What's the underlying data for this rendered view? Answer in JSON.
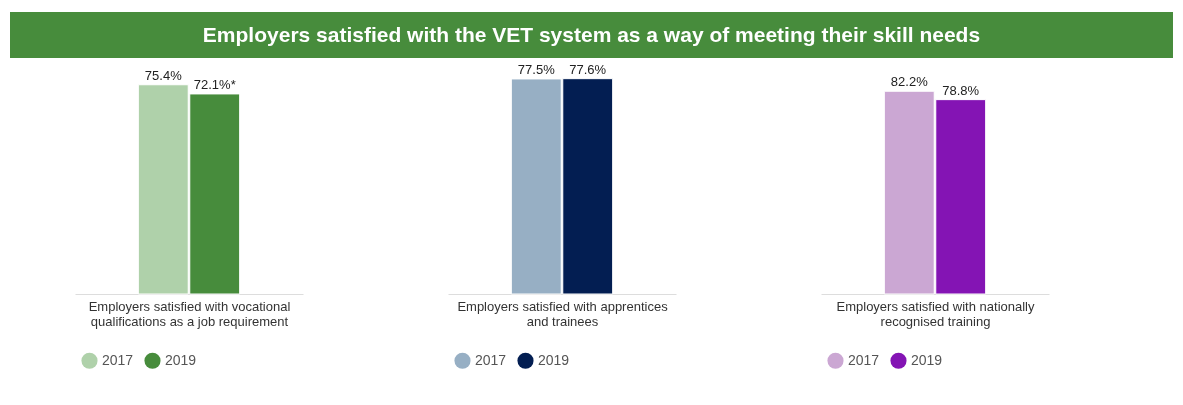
{
  "chart_data": [
    {
      "type": "bar",
      "title": "Employers satisfied with the VET system as a way of meeting their skill needs",
      "categories": [
        null
      ],
      "xlabel": "Employers satisfied with vocational qualifications as a job requirement",
      "legend": "bottom",
      "series": [
        {
          "name": "2017",
          "color": "#afd1aa",
          "values": [
            75.4
          ],
          "value_labels": [
            "75.4%"
          ]
        },
        {
          "name": "2019",
          "color": "#478c3c",
          "values": [
            72.1
          ],
          "value_labels": [
            "72.1%*"
          ]
        }
      ]
    },
    {
      "type": "bar",
      "categories": [
        null
      ],
      "xlabel": "Employers satisfied with apprentices and trainees",
      "legend": "bottom",
      "series": [
        {
          "name": "2017",
          "color": "#97afc4",
          "values": [
            77.5
          ],
          "value_labels": [
            "77.5%"
          ]
        },
        {
          "name": "2019",
          "color": "#031e52",
          "values": [
            77.6
          ],
          "value_labels": [
            "77.6%"
          ]
        }
      ]
    },
    {
      "type": "bar",
      "categories": [
        null
      ],
      "xlabel": "Employers satisfied with nationally recognised training",
      "legend": "bottom",
      "series": [
        {
          "name": "2017",
          "color": "#cba7d3",
          "values": [
            82.2
          ],
          "value_labels": [
            "82.2%"
          ]
        },
        {
          "name": "2019",
          "color": "#8414b4",
          "values": [
            78.8
          ],
          "value_labels": [
            "78.8%"
          ]
        }
      ]
    }
  ]
}
